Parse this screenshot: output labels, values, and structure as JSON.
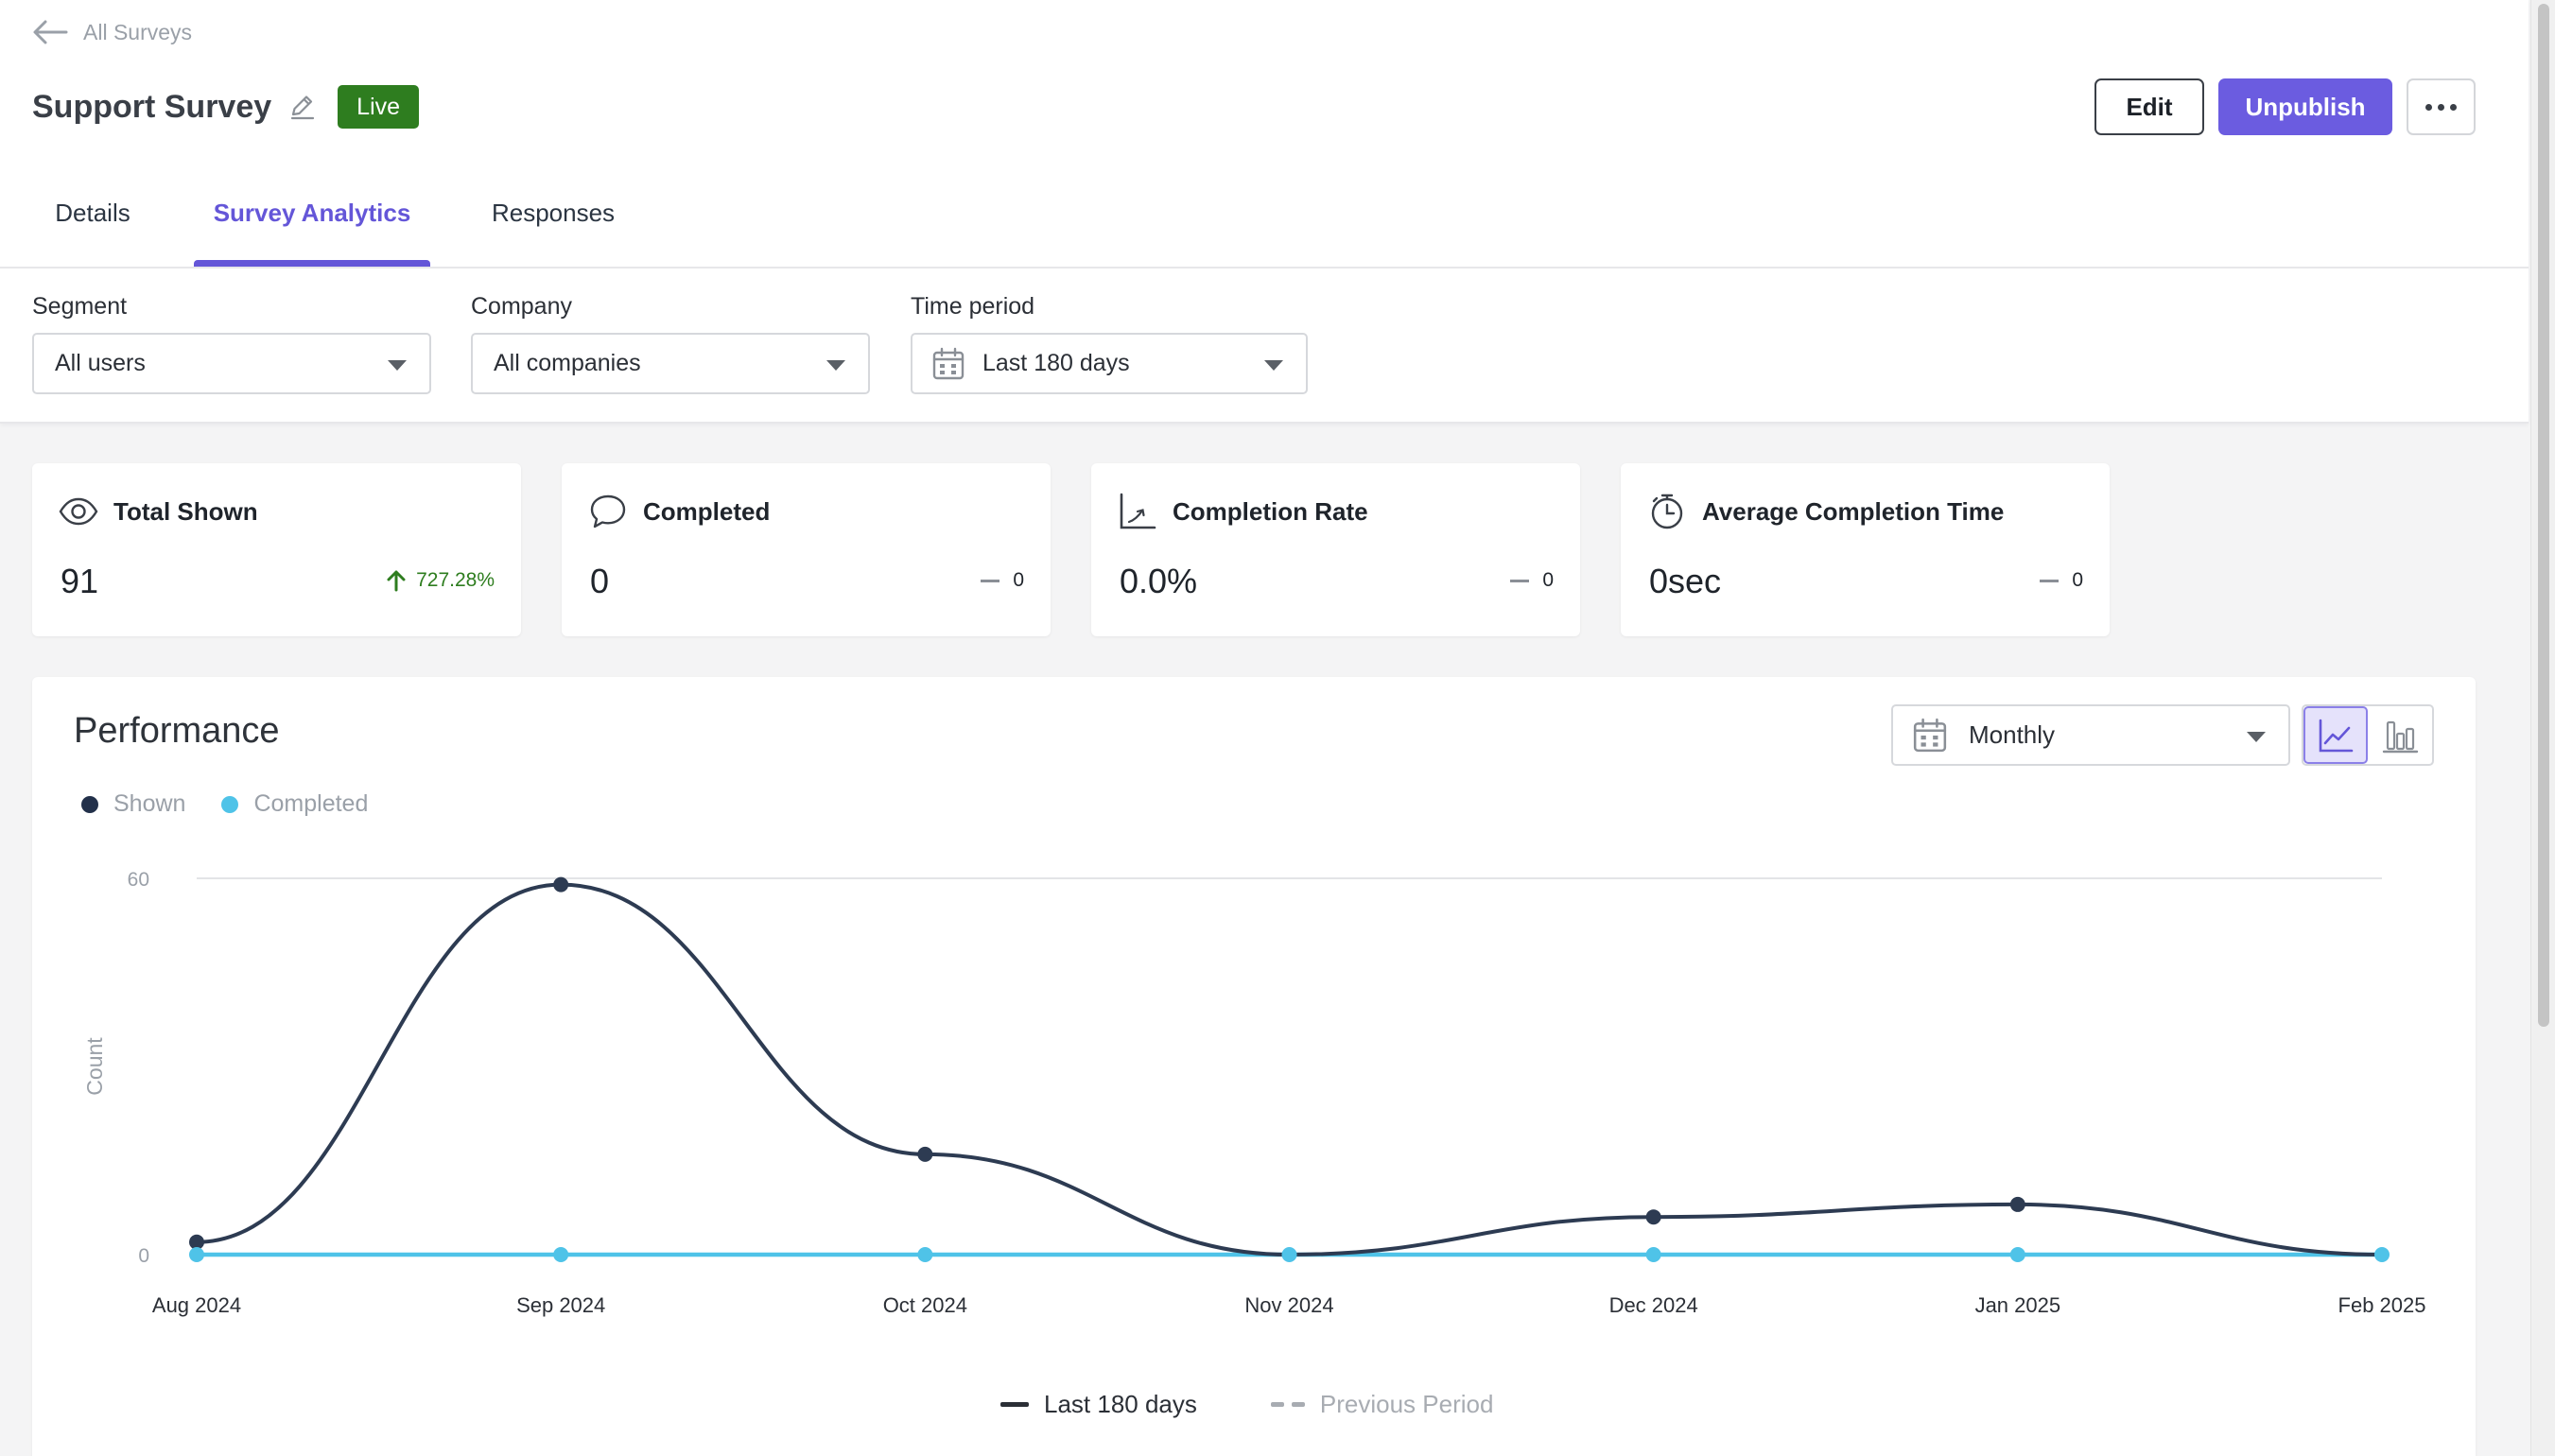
{
  "header": {
    "back_label": "All Surveys",
    "title": "Support Survey",
    "status_badge": "Live",
    "edit_label": "Edit",
    "unpublish_label": "Unpublish"
  },
  "tabs": [
    {
      "label": "Details",
      "active": false
    },
    {
      "label": "Survey Analytics",
      "active": true
    },
    {
      "label": "Responses",
      "active": false
    }
  ],
  "filters": {
    "segment": {
      "label": "Segment",
      "value": "All users"
    },
    "company": {
      "label": "Company",
      "value": "All companies"
    },
    "time_period": {
      "label": "Time period",
      "value": "Last 180 days"
    }
  },
  "cards": [
    {
      "title": "Total Shown",
      "icon": "eye-icon",
      "value": "91",
      "delta": "727.28%",
      "trend": "up"
    },
    {
      "title": "Completed",
      "icon": "speech-bubble-icon",
      "value": "0",
      "delta": "0",
      "trend": "flat"
    },
    {
      "title": "Completion Rate",
      "icon": "rate-chart-icon",
      "value": "0.0%",
      "delta": "0",
      "trend": "flat"
    },
    {
      "title": "Average Completion Time",
      "icon": "stopwatch-icon",
      "value": "0sec",
      "delta": "0",
      "trend": "flat"
    }
  ],
  "performance": {
    "title": "Performance",
    "interval": "Monthly",
    "view": "line"
  },
  "colors": {
    "accent": "#6456d8",
    "live": "#2e7d1f",
    "shown": "#2d3b52",
    "completed": "#4fc3e8"
  },
  "chart_data": {
    "type": "line",
    "title": "Performance",
    "ylabel": "Count",
    "xlabel": "",
    "categories": [
      "Aug 2024",
      "Sep 2024",
      "Oct 2024",
      "Nov 2024",
      "Dec 2024",
      "Jan 2025",
      "Feb 2025"
    ],
    "ylim": [
      0,
      60
    ],
    "yticks": [
      "0",
      "60"
    ],
    "grid": true,
    "smooth": true,
    "legend": "top-left",
    "series": [
      {
        "name": "Shown",
        "color": "#2d3b52",
        "values": [
          2,
          59,
          16,
          0,
          6,
          8,
          0
        ]
      },
      {
        "name": "Completed",
        "color": "#4fc3e8",
        "values": [
          0,
          0,
          0,
          0,
          0,
          0,
          0
        ]
      }
    ],
    "period_legend": [
      "Last 180 days",
      "Previous Period"
    ]
  }
}
